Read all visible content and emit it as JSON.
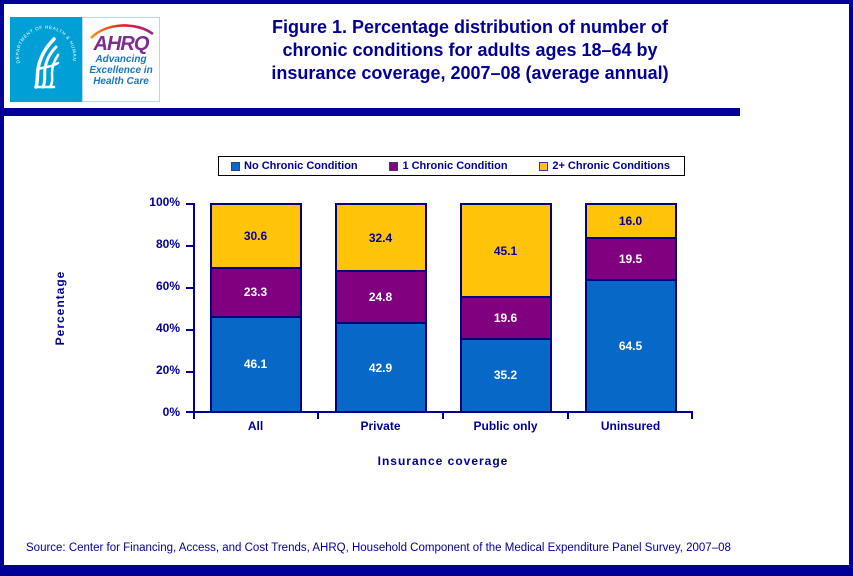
{
  "header": {
    "title_lines": [
      "Figure 1. Percentage distribution of number of",
      "chronic conditions for adults ages 18–64 by",
      "insurance coverage, 2007–08 (average annual)"
    ],
    "logo": {
      "hhs_ring_text": "DEPARTMENT OF HEALTH & HUMAN SERVICES · USA",
      "ahrq_acronym": "AHRQ",
      "ahrq_tagline_lines": [
        "Advancing",
        "Excellence in",
        "Health Care"
      ]
    }
  },
  "chart_data": {
    "type": "bar",
    "stacked": true,
    "title": "Figure 1. Percentage distribution of number of chronic conditions for adults ages 18–64 by insurance coverage, 2007–08 (average annual)",
    "categories": [
      "All",
      "Private",
      "Public only",
      "Uninsured"
    ],
    "series": [
      {
        "name": "No Chronic Condition",
        "color": "#0768C8",
        "label_color": "#FFFFFF",
        "values": [
          46.1,
          42.9,
          35.2,
          64.5
        ]
      },
      {
        "name": "1 Chronic Condition",
        "color": "#800080",
        "label_color": "#FFFFFF",
        "values": [
          23.3,
          24.8,
          19.6,
          19.5
        ]
      },
      {
        "name": "2+ Chronic Conditions",
        "color": "#FFC408",
        "label_color": "#000099",
        "values": [
          30.6,
          32.4,
          45.1,
          16.0
        ]
      }
    ],
    "xlabel": "Insurance coverage",
    "ylabel": "Percentage",
    "ylim": [
      0,
      100
    ],
    "ytick_step": 20,
    "ytick_labels": [
      "0%",
      "20%",
      "40%",
      "60%",
      "80%",
      "100%"
    ],
    "legend_position": "top",
    "grid": false
  },
  "footer": {
    "source": "Source: Center for Financing, Access, and Cost Trends, AHRQ, Household Component of the Medical Expenditure Panel Survey, 2007–08"
  },
  "colors": {
    "navy": "#000099",
    "bar_border": "#000080",
    "logo_blue": "#00A0D6",
    "ahrq_purple": "#7B2E8E",
    "tagline_blue": "#1B75BC"
  }
}
